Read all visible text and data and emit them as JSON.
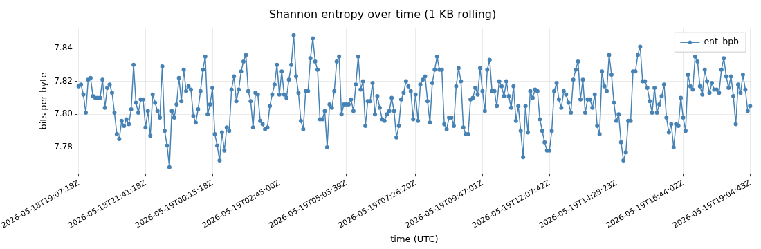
{
  "chart_data": {
    "type": "line",
    "title": "Shannon entropy over time (1 KB rolling)",
    "xlabel": "time (UTC)",
    "ylabel": "bits per byte",
    "categories": [
      "2026-05-18T19:07:18Z",
      null,
      null,
      null,
      null,
      null,
      null,
      null,
      null,
      null,
      null,
      null,
      null,
      null,
      null,
      null,
      null,
      null,
      null,
      null,
      null,
      null,
      null,
      null,
      null,
      null,
      null,
      null,
      "2026-05-18T21:41:18Z",
      null,
      null,
      null,
      null,
      null,
      null,
      null,
      null,
      null,
      null,
      null,
      null,
      null,
      null,
      null,
      null,
      null,
      null,
      null,
      null,
      null,
      null,
      null,
      null,
      null,
      null,
      null,
      "2026-05-19T00:15:18Z",
      null,
      null,
      null,
      null,
      null,
      null,
      null,
      null,
      null,
      null,
      null,
      null,
      null,
      null,
      null,
      null,
      null,
      null,
      null,
      null,
      null,
      null,
      null,
      null,
      null,
      null,
      null,
      "2026-05-19T02:45:00Z",
      null,
      null,
      null,
      null,
      null,
      null,
      null,
      null,
      null,
      null,
      null,
      null,
      null,
      null,
      null,
      null,
      null,
      null,
      null,
      null,
      null,
      null,
      null,
      null,
      null,
      null,
      null,
      "2026-05-19T05:05:39Z",
      null,
      null,
      null,
      null,
      null,
      null,
      null,
      null,
      null,
      null,
      null,
      null,
      null,
      null,
      null,
      null,
      null,
      null,
      null,
      null,
      null,
      null,
      null,
      null,
      null,
      null,
      null,
      null,
      "2026-05-19T07:26:20Z",
      null,
      null,
      null,
      null,
      null,
      null,
      null,
      null,
      null,
      null,
      null,
      null,
      null,
      null,
      null,
      null,
      null,
      null,
      null,
      null,
      null,
      null,
      null,
      null,
      null,
      null,
      null,
      "2026-05-19T09:47:01Z",
      null,
      null,
      null,
      null,
      null,
      null,
      null,
      null,
      null,
      null,
      null,
      null,
      null,
      null,
      null,
      null,
      null,
      null,
      null,
      null,
      null,
      null,
      null,
      null,
      null,
      null,
      null,
      "2026-05-19T12:07:42Z",
      null,
      null,
      null,
      null,
      null,
      null,
      null,
      null,
      null,
      null,
      null,
      null,
      null,
      null,
      null,
      null,
      null,
      null,
      null,
      null,
      null,
      null,
      null,
      null,
      null,
      null,
      null,
      "2026-05-19T14:28:23Z",
      null,
      null,
      null,
      null,
      null,
      null,
      null,
      null,
      null,
      null,
      null,
      null,
      null,
      null,
      null,
      null,
      null,
      null,
      null,
      null,
      null,
      null,
      null,
      null,
      null,
      null,
      null,
      "2026-05-19T16:44:02Z",
      null,
      null,
      null,
      null,
      null,
      null,
      null,
      null,
      null,
      null,
      null,
      null,
      null,
      null,
      null,
      null,
      null,
      null,
      null,
      null,
      null,
      null,
      null,
      null,
      null,
      null,
      null,
      "2026-05-19T19:04:43Z"
    ],
    "ylim": [
      7.764,
      7.852
    ],
    "yticks": [
      {
        "value": 7.78,
        "label": "7.78"
      },
      {
        "value": 7.8,
        "label": "7.80"
      },
      {
        "value": 7.82,
        "label": "7.82"
      },
      {
        "value": 7.84,
        "label": "7.84"
      }
    ],
    "grid": true,
    "legend": "top right",
    "marker": "circle",
    "line_style": "solid",
    "series": [
      {
        "name": "ent_bpb",
        "color": "#4682b4",
        "values": [
          7.817,
          7.818,
          7.812,
          7.801,
          7.821,
          7.822,
          7.811,
          7.81,
          7.81,
          7.81,
          7.821,
          7.804,
          7.816,
          7.818,
          7.813,
          7.801,
          7.788,
          7.785,
          7.796,
          7.793,
          7.797,
          7.794,
          7.803,
          7.83,
          7.807,
          7.801,
          7.809,
          7.809,
          7.792,
          7.802,
          7.787,
          7.812,
          7.807,
          7.802,
          7.798,
          7.829,
          7.79,
          7.781,
          7.768,
          7.802,
          7.798,
          7.806,
          7.822,
          7.808,
          7.827,
          7.814,
          7.817,
          7.815,
          7.799,
          7.795,
          7.803,
          7.814,
          7.827,
          7.835,
          7.8,
          7.806,
          7.816,
          7.788,
          7.781,
          7.772,
          7.789,
          7.778,
          7.792,
          7.79,
          7.815,
          7.823,
          7.808,
          7.815,
          7.826,
          7.832,
          7.836,
          7.814,
          7.808,
          7.792,
          7.813,
          7.812,
          7.796,
          7.794,
          7.791,
          7.792,
          7.805,
          7.812,
          7.818,
          7.83,
          7.812,
          7.826,
          7.812,
          7.81,
          7.821,
          7.83,
          7.848,
          7.823,
          7.813,
          7.796,
          7.791,
          7.814,
          7.814,
          7.834,
          7.846,
          7.832,
          7.827,
          7.797,
          7.797,
          7.802,
          7.78,
          7.806,
          7.804,
          7.814,
          7.832,
          7.835,
          7.8,
          7.806,
          7.806,
          7.806,
          7.809,
          7.802,
          7.818,
          7.835,
          7.815,
          7.82,
          7.793,
          7.808,
          7.808,
          7.819,
          7.8,
          7.811,
          7.804,
          7.797,
          7.796,
          7.8,
          7.802,
          7.81,
          7.802,
          7.786,
          7.793,
          7.809,
          7.813,
          7.82,
          7.817,
          7.814,
          7.797,
          7.812,
          7.796,
          7.818,
          7.821,
          7.823,
          7.808,
          7.795,
          7.819,
          7.827,
          7.835,
          7.827,
          7.827,
          7.794,
          7.791,
          7.798,
          7.798,
          7.793,
          7.817,
          7.828,
          7.82,
          7.792,
          7.788,
          7.788,
          7.809,
          7.81,
          7.816,
          7.812,
          7.828,
          7.814,
          7.802,
          7.827,
          7.833,
          7.814,
          7.814,
          7.805,
          7.82,
          7.817,
          7.811,
          7.82,
          7.811,
          7.804,
          7.817,
          7.796,
          7.805,
          7.79,
          7.774,
          7.805,
          7.789,
          7.814,
          7.81,
          7.815,
          7.814,
          7.797,
          7.79,
          7.783,
          7.778,
          7.778,
          7.79,
          7.814,
          7.819,
          7.809,
          7.804,
          7.814,
          7.812,
          7.807,
          7.801,
          7.821,
          7.827,
          7.832,
          7.809,
          7.821,
          7.801,
          7.809,
          7.809,
          7.804,
          7.812,
          7.793,
          7.788,
          7.826,
          7.817,
          7.814,
          7.836,
          7.824,
          7.807,
          7.796,
          7.8,
          7.783,
          7.772,
          7.777,
          7.796,
          7.796,
          7.826,
          7.826,
          7.836,
          7.841,
          7.82,
          7.82,
          7.816,
          7.808,
          7.801,
          7.816,
          7.801,
          7.806,
          7.811,
          7.818,
          7.798,
          7.789,
          7.794,
          7.78,
          7.794,
          7.793,
          7.81,
          7.798,
          7.79,
          7.824,
          7.817,
          7.815,
          7.835,
          7.832,
          7.817,
          7.812,
          7.827,
          7.82,
          7.813,
          7.819,
          7.815,
          7.815,
          7.813,
          7.827,
          7.834,
          7.823,
          7.816,
          7.823,
          7.811,
          7.794,
          7.818,
          7.813,
          7.824,
          7.815,
          7.802,
          7.805
        ]
      }
    ]
  }
}
